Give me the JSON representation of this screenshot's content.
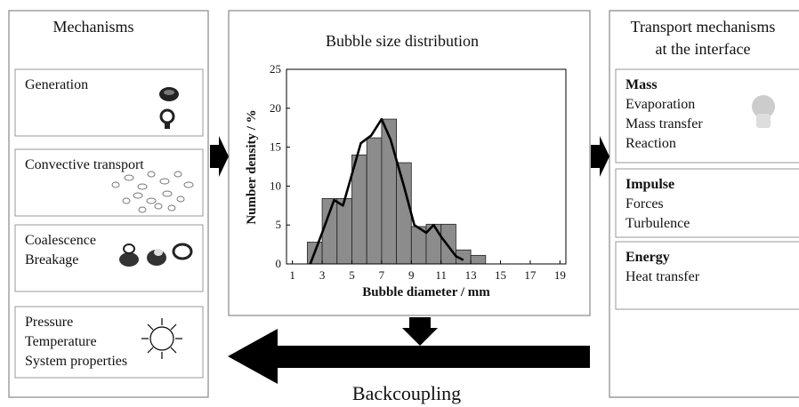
{
  "left_panel": {
    "title": "Mechanisms",
    "boxes": [
      {
        "lines": [
          "Generation"
        ]
      },
      {
        "lines": [
          "Convective transport"
        ]
      },
      {
        "lines": [
          "Coalescence",
          "Breakage"
        ]
      },
      {
        "lines": [
          "Pressure",
          "Temperature",
          "System properties"
        ]
      }
    ]
  },
  "chart_data": {
    "type": "histogram",
    "title": "Bubble size distribution",
    "x_label": "Bubble diameter / mm",
    "y_label": "Number density / %",
    "bins": [
      2,
      3,
      4,
      5,
      6,
      7,
      8,
      9,
      10,
      11,
      12,
      13,
      14
    ],
    "values": [
      2.8,
      8.4,
      8.4,
      14,
      16.2,
      18.6,
      13,
      4.8,
      5.1,
      5.1,
      1.8,
      1.1
    ],
    "color": "#8c8c8c",
    "curve": {
      "x": [
        2.2,
        3,
        3.8,
        4.4,
        5,
        5.6,
        6.3,
        7,
        7.6,
        8.5,
        9.2,
        10,
        10.5,
        11,
        12,
        12.5
      ],
      "values": [
        0,
        4,
        8.2,
        7.5,
        11.5,
        15.5,
        16.5,
        18.6,
        16,
        10,
        5,
        4,
        5,
        3.5,
        1,
        0.5
      ],
      "color": "#000000"
    },
    "xlim": [
      0.6,
      19.4
    ],
    "ylim": [
      0,
      25
    ],
    "xticks": [
      1,
      3,
      5,
      7,
      9,
      11,
      13,
      15,
      17,
      19
    ],
    "yticks": [
      0,
      5,
      10,
      15,
      20,
      25
    ]
  },
  "right_panel": {
    "title_lines": [
      "Transport mechanisms",
      "at the interface"
    ],
    "boxes": [
      {
        "heading": "Mass",
        "lines": [
          "Evaporation",
          "Mass transfer",
          "Reaction"
        ]
      },
      {
        "heading": "Impulse",
        "lines": [
          "Forces",
          "Turbulence"
        ]
      },
      {
        "heading": "Energy",
        "lines": [
          "Heat transfer"
        ]
      }
    ]
  },
  "footer": "Backcoupling"
}
